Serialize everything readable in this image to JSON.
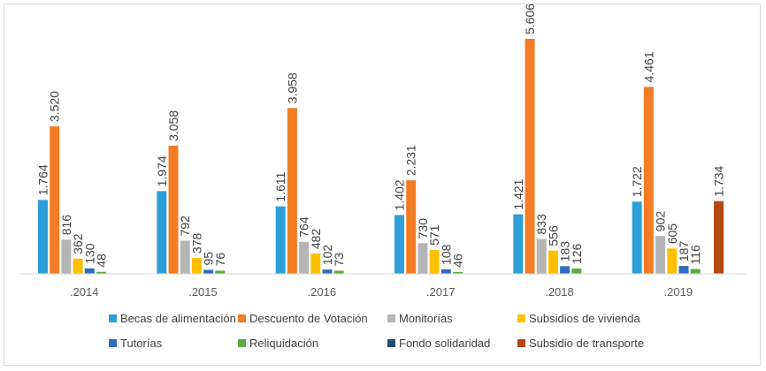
{
  "chart_data": {
    "type": "bar",
    "title": "",
    "xlabel": "",
    "ylabel": "",
    "ylim": [
      0,
      5606
    ],
    "grid": false,
    "legend_position": "bottom",
    "categories": [
      ".2014",
      ".2015",
      ".2016",
      ".2017",
      ".2018",
      ".2019"
    ],
    "series": [
      {
        "name": "Becas de alimentación",
        "color": "#2e9fd9",
        "values": [
          1764,
          1974,
          1611,
          1402,
          1421,
          1722
        ],
        "labels": [
          "1.764",
          "1.974",
          "1.611",
          "1.402",
          "1.421",
          "1.722"
        ]
      },
      {
        "name": "Descuento de Votación",
        "color": "#f47c25",
        "values": [
          3520,
          3058,
          3958,
          2231,
          5606,
          4461
        ],
        "labels": [
          "3.520",
          "3.058",
          "3.958",
          "2.231",
          "5.606",
          "4.461"
        ]
      },
      {
        "name": "Monitorías",
        "color": "#b5b5b5",
        "values": [
          816,
          792,
          764,
          730,
          833,
          902
        ],
        "labels": [
          "816",
          "792",
          "764",
          "730",
          "833",
          "902"
        ]
      },
      {
        "name": "Subsidios de vivienda",
        "color": "#ffc000",
        "values": [
          362,
          378,
          482,
          571,
          556,
          605
        ],
        "labels": [
          "362",
          "378",
          "482",
          "571",
          "556",
          "605"
        ]
      },
      {
        "name": "Tutorías",
        "color": "#2f6ebf",
        "values": [
          130,
          95,
          102,
          108,
          183,
          187
        ],
        "labels": [
          "130",
          "95",
          "102",
          "108",
          "183",
          "187"
        ]
      },
      {
        "name": "Reliquidación",
        "color": "#5cad3c",
        "values": [
          48,
          76,
          73,
          46,
          126,
          116
        ],
        "labels": [
          "48",
          "76",
          "73",
          "46",
          "126",
          "116"
        ]
      },
      {
        "name": "Fondo solidaridad",
        "color": "#1f4e79",
        "values": [
          null,
          null,
          null,
          null,
          null,
          null
        ],
        "labels": [
          "",
          "",
          "",
          "",
          "",
          ""
        ]
      },
      {
        "name": "Subsidio de transporte",
        "color": "#b5470f",
        "values": [
          null,
          null,
          null,
          null,
          null,
          1734
        ],
        "labels": [
          "",
          "",
          "",
          "",
          "",
          "1.734"
        ]
      }
    ]
  }
}
